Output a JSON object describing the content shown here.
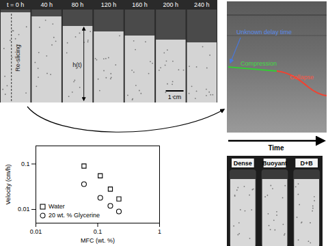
{
  "chart_data": {
    "type": "scatter",
    "x_label": "MFC (wt. %)",
    "y_label": "Velocity (cm/h)",
    "x": [
      0.06,
      0.11,
      0.16,
      0.22
    ],
    "series": [
      {
        "name": "Water",
        "color": "#000000",
        "marker": "square",
        "values": [
          0.09,
          0.055,
          0.028,
          0.017
        ]
      },
      {
        "name": "20 wt. % Glycerine",
        "color": "#000000",
        "marker": "circle",
        "values": [
          0.036,
          0.018,
          0.012,
          0.009
        ]
      }
    ],
    "xlim": [
      0.01,
      1
    ],
    "xticks": [
      0.01,
      0.1,
      1
    ],
    "ylim": [
      0.005,
      0.25
    ],
    "yticks": [
      0.01,
      0.1
    ],
    "log": true,
    "grid": false,
    "legend": "lower left"
  },
  "time_lapse": {
    "labels": [
      "t = 0 h",
      "40 h",
      "80 h",
      "120 h",
      "160 h",
      "200 h",
      "240 h"
    ],
    "reslicing": "Re-slicing",
    "height": "h(t)",
    "scale_bar": "1 cm"
  },
  "kymograph": {
    "delay": "Unknown delay time",
    "compression": "Compression",
    "collapse": "Collapse",
    "x_label": "Time"
  },
  "vials": {
    "labels": [
      "Dense",
      "Buoyant",
      "D+B"
    ]
  }
}
